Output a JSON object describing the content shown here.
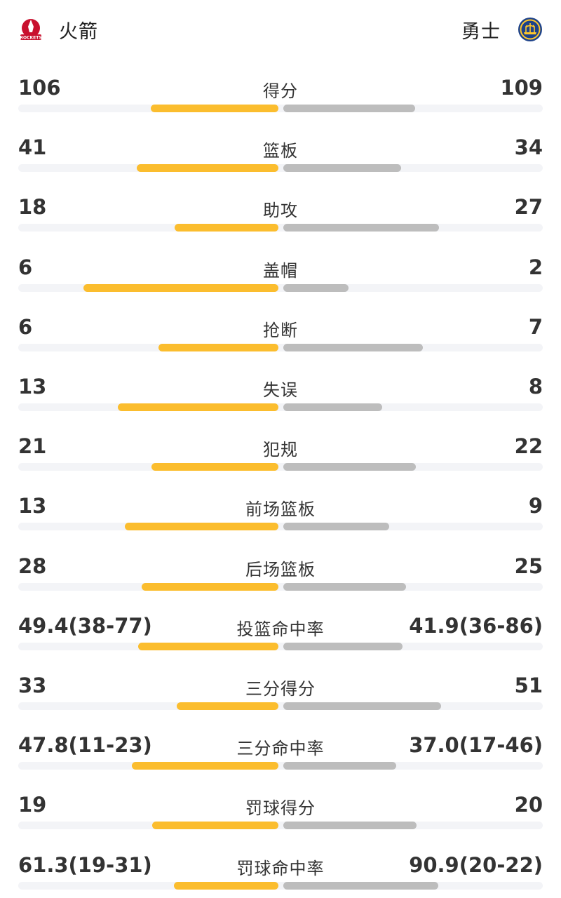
{
  "home_team": {
    "name": "火箭",
    "logo_text": "ROCKETS",
    "icon": "rockets-logo-icon",
    "bar_color": "#fbbd2e"
  },
  "away_team": {
    "name": "勇士",
    "icon": "warriors-logo-icon",
    "bar_color": "#bdbdbd"
  },
  "stats": [
    {
      "label": "得分",
      "home": "106",
      "away": "109",
      "home_ratio": 0.493,
      "away_ratio": 0.507
    },
    {
      "label": "篮板",
      "home": "41",
      "away": "34",
      "home_ratio": 0.547,
      "away_ratio": 0.453
    },
    {
      "label": "助攻",
      "home": "18",
      "away": "27",
      "home_ratio": 0.4,
      "away_ratio": 0.6
    },
    {
      "label": "盖帽",
      "home": "6",
      "away": "2",
      "home_ratio": 0.75,
      "away_ratio": 0.25
    },
    {
      "label": "抢断",
      "home": "6",
      "away": "7",
      "home_ratio": 0.462,
      "away_ratio": 0.538
    },
    {
      "label": "失误",
      "home": "13",
      "away": "8",
      "home_ratio": 0.619,
      "away_ratio": 0.381
    },
    {
      "label": "犯规",
      "home": "21",
      "away": "22",
      "home_ratio": 0.488,
      "away_ratio": 0.512
    },
    {
      "label": "前场篮板",
      "home": "13",
      "away": "9",
      "home_ratio": 0.591,
      "away_ratio": 0.409
    },
    {
      "label": "后场篮板",
      "home": "28",
      "away": "25",
      "home_ratio": 0.528,
      "away_ratio": 0.472
    },
    {
      "label": "投篮命中率",
      "home": "49.4(38-77)",
      "away": "41.9(36-86)",
      "home_ratio": 0.541,
      "away_ratio": 0.459
    },
    {
      "label": "三分得分",
      "home": "33",
      "away": "51",
      "home_ratio": 0.393,
      "away_ratio": 0.607
    },
    {
      "label": "三分命中率",
      "home": "47.8(11-23)",
      "away": "37.0(17-46)",
      "home_ratio": 0.564,
      "away_ratio": 0.436
    },
    {
      "label": "罚球得分",
      "home": "19",
      "away": "20",
      "home_ratio": 0.487,
      "away_ratio": 0.513
    },
    {
      "label": "罚球命中率",
      "home": "61.3(19-31)",
      "away": "90.9(20-22)",
      "home_ratio": 0.403,
      "away_ratio": 0.597
    }
  ]
}
